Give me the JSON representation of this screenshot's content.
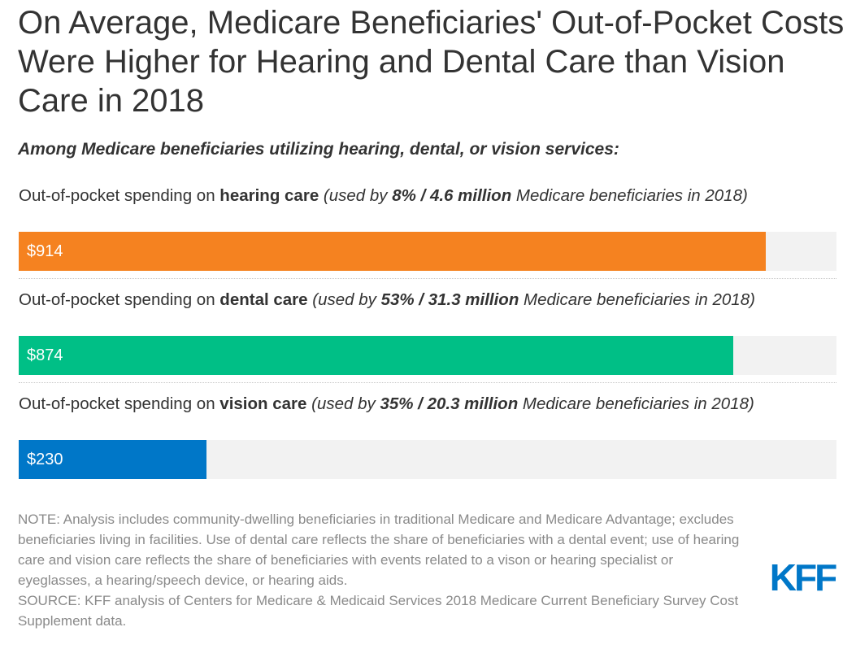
{
  "header": {
    "title": "On Average, Medicare Beneficiaries' Out-of-Pocket Costs Were Higher for Hearing and Dental Care than Vision Care in 2018",
    "subtitle": "Among Medicare beneficiaries utilizing hearing, dental, or vision services:"
  },
  "chart_data": {
    "type": "bar",
    "orientation": "horizontal",
    "title": "On Average, Medicare Beneficiaries' Out-of-Pocket Costs Were Higher for Hearing and Dental Care than Vision Care in 2018",
    "subtitle": "Among Medicare beneficiaries utilizing hearing, dental, or vision services:",
    "xlim": [
      0,
      1000
    ],
    "grid": false,
    "legend": "none",
    "categories": [
      "hearing care",
      "dental care",
      "vision care"
    ],
    "values": [
      914,
      874,
      230
    ],
    "value_labels": [
      "$914",
      "$874",
      "$230"
    ],
    "colors": [
      "#f58220",
      "#00bf86",
      "#0077c8"
    ],
    "track_color": "#f2f2f2",
    "rows": [
      {
        "prefix": "Out-of-pocket spending on ",
        "category": "hearing care",
        "note_open": " (used by ",
        "stat": "8% / 4.6 million",
        "note_close": " Medicare beneficiaries in 2018)"
      },
      {
        "prefix": "Out-of-pocket spending on ",
        "category": "dental care",
        "note_open": " (used by ",
        "stat": "53% / 31.3 million",
        "note_close": " Medicare beneficiaries in 2018)"
      },
      {
        "prefix": "Out-of-pocket spending on ",
        "category": "vision care",
        "note_open": " (used by ",
        "stat": "35% / 20.3 million",
        "note_close": " Medicare beneficiaries in 2018)"
      }
    ]
  },
  "footer": {
    "note": "NOTE: Analysis includes community-dwelling beneficiaries in traditional Medicare and Medicare Advantage; excludes beneficiaries living in facilities. Use of dental care reflects the share of beneficiaries with a dental event; use of hearing care and vision care reflects the share of beneficiaries with events related to a vison or hearing specialist or eyeglasses, a hearing/speech device, or hearing aids.",
    "source": "SOURCE: KFF analysis of Centers for Medicare & Medicaid Services 2018 Medicare Current Beneficiary Survey Cost Supplement data.",
    "logo_text": "KFF",
    "logo_color": "#0077c8"
  }
}
